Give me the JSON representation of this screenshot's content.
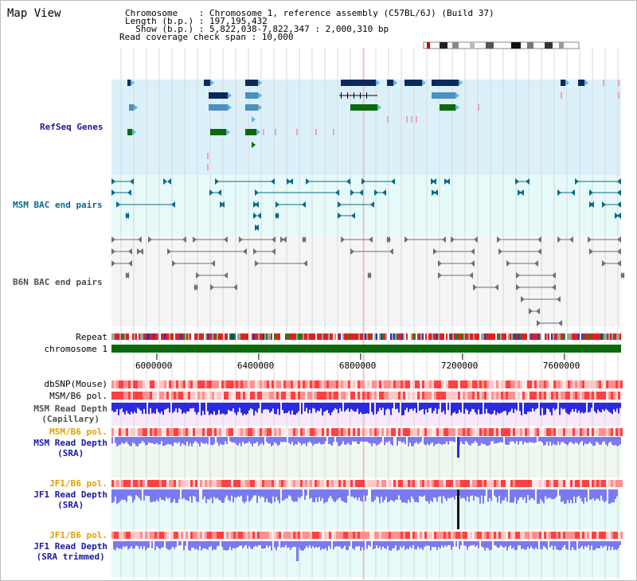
{
  "app": {
    "title": "Map View"
  },
  "info": {
    "chromosome": "Chromosome    : Chromosome 1, reference assembly (C57BL/6J) (Build 37)",
    "length": "Length (b.p.) : 197,195,432",
    "show": "  Show (b.p.) : 5,822,038-7,822,347 : 2,000,310 bp",
    "coverage": "Read coverage check span : 10,000"
  },
  "tracks": {
    "refseq": "RefSeq Genes",
    "msm_bac": "MSM BAC end pairs",
    "b6n_bac": "B6N BAC end pairs",
    "repeat": "Repeat",
    "chromosome": "chromosome 1",
    "dbsnp": "dbSNP(Mouse)",
    "msm_pol": "MSM/B6 pol.",
    "msm_depth_cap": "MSM Read Depth\n(Capillary)",
    "msm_pol_sra": "MSM/B6 pol.",
    "msm_depth_sra": "MSM Read Depth\n(SRA)",
    "jf1_pol": "JF1/B6 pol.",
    "jf1_depth": "JF1 Read Depth\n(SRA)",
    "jf1_pol_trim": "JF1/B6 pol.",
    "jf1_depth_trim": "JF1 Read Depth\n(SRA trimmed)"
  },
  "axis": {
    "ticks": [
      {
        "label": "6000000",
        "value": 6000000
      },
      {
        "label": "6400000",
        "value": 6400000
      },
      {
        "label": "6800000",
        "value": 6800000
      },
      {
        "label": "7200000",
        "value": 7200000
      },
      {
        "label": "7600000",
        "value": 7600000
      }
    ],
    "start": 5822038,
    "end": 7822347
  },
  "colors": {
    "refseq_bg": "#dcf0fa",
    "bac_bg": "#e6fafa",
    "b6n_bg": "#f5f5f5",
    "gene_dark": "#0a2a5a",
    "gene_light": "#4a90c0",
    "gene_green": "#0a6a0a",
    "pink": "#f0a0c0",
    "msm_bac": "#0a6a8a",
    "b6n_bac": "#707070",
    "chromosome": "#0a6a0a",
    "snp": "#ff5050",
    "depth_blue": "#2a2ae0",
    "depth_light": "#7a7af0",
    "label_blue": "#1a1aa0",
    "label_teal": "#0a6a8a",
    "label_gray": "#505050",
    "label_orange": "#e0a000"
  }
}
